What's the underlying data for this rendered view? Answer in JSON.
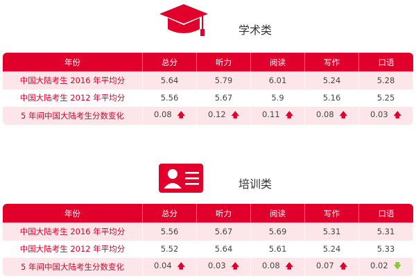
{
  "colors": {
    "accent": "#e0002b",
    "row_pink": "#fde6ea",
    "up": "#e0002b",
    "down": "#8cc63f"
  },
  "sections": [
    {
      "title": "学术类",
      "icon": "graduation-cap-icon",
      "headers": [
        "年份",
        "总分",
        "听力",
        "阅读",
        "写作",
        "口语"
      ],
      "rows": [
        {
          "label": "中国大陆考生 2016 年平均分",
          "values": [
            "5.64",
            "5.79",
            "6.01",
            "5.24",
            "5.28"
          ]
        },
        {
          "label": "中国大陆考生 2012 年平均分",
          "values": [
            "5.56",
            "5.67",
            "5.9",
            "5.16",
            "5.25"
          ]
        },
        {
          "label": "5 年间中国大陆考生分数变化",
          "values": [
            "0.08",
            "0.12",
            "0.11",
            "0.08",
            "0.03"
          ],
          "trend": [
            "up",
            "up",
            "up",
            "up",
            "up"
          ]
        }
      ]
    },
    {
      "title": "培训类",
      "icon": "id-card-icon",
      "headers": [
        "年份",
        "总分",
        "听力",
        "阅读",
        "写作",
        "口语"
      ],
      "rows": [
        {
          "label": "中国大陆考生 2016 年平均分",
          "values": [
            "5.56",
            "5.67",
            "5.69",
            "5.31",
            "5.31"
          ]
        },
        {
          "label": "中国大陆考生 2012 年平均分",
          "values": [
            "5.52",
            "5.64",
            "5.61",
            "5.24",
            "5.33"
          ]
        },
        {
          "label": "5 年间中国大陆考生分数变化",
          "values": [
            "0.04",
            "0.03",
            "0.08",
            "0.07",
            "0.02"
          ],
          "trend": [
            "up",
            "up",
            "up",
            "up",
            "down"
          ]
        }
      ]
    }
  ]
}
